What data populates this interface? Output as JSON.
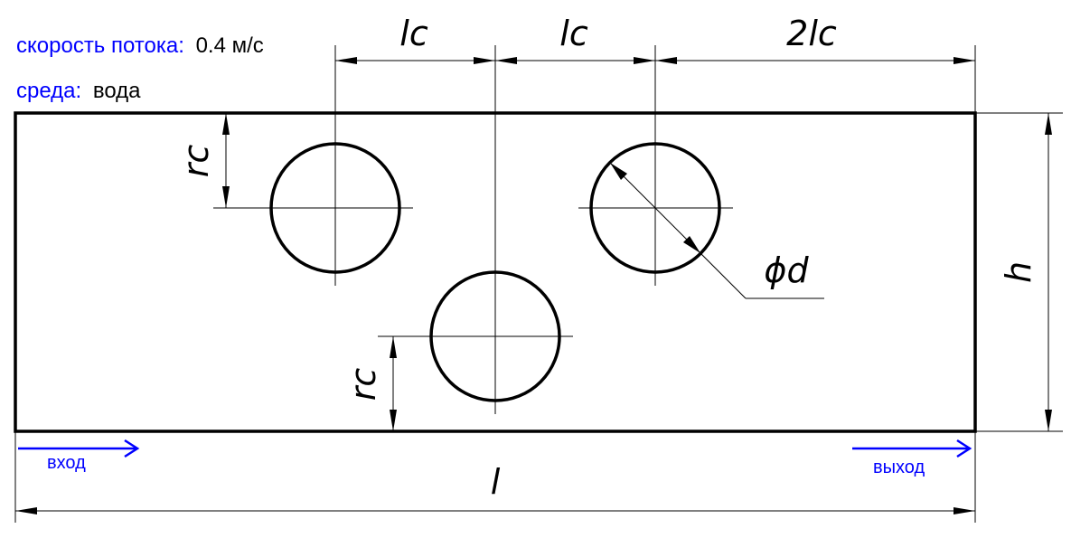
{
  "info": {
    "speed_label": "скорость потока:",
    "speed_value": "0.4 м/с",
    "medium_label": "среда:",
    "medium_value": "вода"
  },
  "dimensions": {
    "lc_1": "lc",
    "lc_2": "lc",
    "two_lc": "2lc",
    "rc_top": "rc",
    "rc_bottom": "rc",
    "diameter": "ϕd",
    "height": "h",
    "length": "l"
  },
  "flow": {
    "inlet_label": "вход",
    "outlet_label": "выход"
  },
  "colors": {
    "label_blue": "#0000ff",
    "line": "#000000"
  }
}
